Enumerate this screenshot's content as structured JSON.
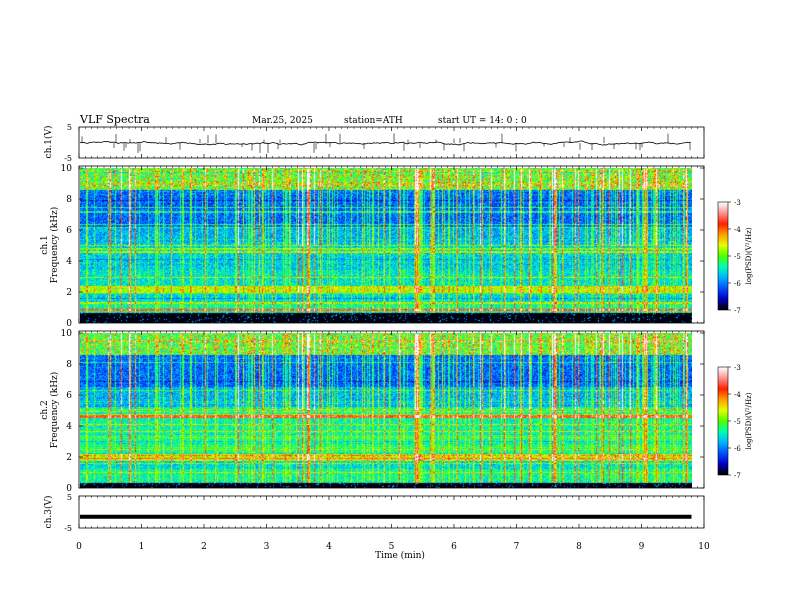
{
  "header": {
    "title": "VLF  Spectra",
    "date": "Mar.25, 2025",
    "station": "station=ATH",
    "start": "start  UT  =   14: 0  : 0"
  },
  "colorbar": {
    "label": "log(PSD)(V²/Hz)",
    "ticks": [
      "-3",
      "-4",
      "-5",
      "-6",
      "-7"
    ],
    "range": [
      -7,
      -3
    ],
    "colors": [
      "#000000",
      "#0000c8",
      "#0050ff",
      "#00b4ff",
      "#00ffb4",
      "#50ff00",
      "#e6ff00",
      "#ffa000",
      "#ff2000",
      "#ff9090",
      "#ffffff"
    ]
  },
  "chart_data": [
    {
      "type": "line",
      "name": "ch1-waveform",
      "ylabel": "ch.1(V)",
      "ylim": [
        -5,
        5
      ],
      "yticks": [
        "5",
        "-5"
      ],
      "x_range_min": [
        0,
        9.8
      ],
      "baseline_v": -0.2,
      "amplitude_v": 0.6,
      "spikes": "frequent impulsive spikes to about ±3 V",
      "color": "#000000"
    },
    {
      "type": "heatmap",
      "name": "ch1-spectrogram",
      "ylabel": "ch.1\nFrequency (kHz)",
      "ylim": [
        0,
        10
      ],
      "yticks": [
        "10",
        "8",
        "6",
        "4",
        "2",
        "0"
      ],
      "x_range_min": [
        0,
        9.8
      ],
      "z_range": [
        -7,
        -3
      ],
      "features": {
        "dark_band_khz": [
          6.2,
          8.6
        ],
        "strong_band_khz": [
          1.9,
          2.4
        ],
        "black_band_khz": [
          0,
          0.6
        ],
        "hot_line_khz": 0.8
      }
    },
    {
      "type": "heatmap",
      "name": "ch2-spectrogram",
      "ylabel": "ch.2\nFrequency (kHz)",
      "ylim": [
        0,
        10
      ],
      "yticks": [
        "10",
        "8",
        "6",
        "4",
        "2",
        "0"
      ],
      "x_range_min": [
        0,
        9.8
      ],
      "z_range": [
        -7,
        -3
      ],
      "features": {
        "dark_band_khz": [
          6.5,
          8.6
        ],
        "strong_band_khz": [
          1.8,
          2.2
        ],
        "black_band_khz": [
          0,
          0.3
        ],
        "hot_line_khz": 4.6
      }
    },
    {
      "type": "line",
      "name": "ch3-waveform",
      "ylabel": "ch.3(V)",
      "ylim": [
        -5,
        5
      ],
      "yticks": [
        "5",
        "-5"
      ],
      "x_range_min": [
        0,
        9.8
      ],
      "baseline_v": -1.5,
      "color": "#000000"
    }
  ],
  "xaxis": {
    "label": "Time  (min)",
    "range": [
      0,
      10
    ],
    "ticks": [
      "0",
      "1",
      "2",
      "3",
      "4",
      "5",
      "6",
      "7",
      "8",
      "9",
      "10"
    ]
  }
}
